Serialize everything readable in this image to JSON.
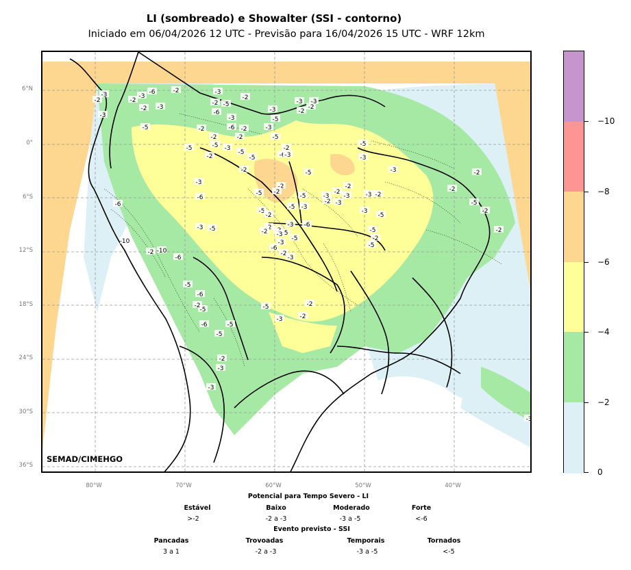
{
  "header": {
    "title": "LI (sombreado) e Showalter (SSI - contorno)",
    "subtitle": "Iniciado em 06/04/2026 12 UTC - Previsão para 16/04/2026 15 UTC - WRF 12km"
  },
  "map": {
    "credit": "SEMAD/CIMEHGO",
    "lat_ticks": [
      "6°N",
      "0°",
      "6°S",
      "12°S",
      "18°S",
      "24°S",
      "30°S",
      "36°S"
    ],
    "lon_ticks": [
      "80°W",
      "70°W",
      "60°W",
      "50°W",
      "40°W"
    ],
    "lon_range": [
      -86,
      -31
    ],
    "lat_range": [
      -37,
      9
    ],
    "contour_labels": [
      "-3",
      "-2",
      "-3",
      "-6",
      "-3",
      "-2",
      "-2",
      "-5",
      "-3",
      "-2",
      "-3",
      "-2",
      "-5",
      "-6",
      "-3",
      "-2",
      "-6",
      "-2",
      "-2",
      "-5",
      "-5",
      "-2",
      "-3",
      "-6",
      "-5",
      "-2",
      "-3",
      "-5",
      "-5",
      "-2",
      "-3",
      "-5",
      "-6",
      "-3",
      "-3",
      "-2",
      "-5",
      "-2",
      "-2",
      "-3",
      "-3",
      "-2",
      "-2",
      "-2",
      "-5",
      "-2",
      "-5",
      "-3",
      "-5",
      "-2",
      "-3",
      "-5",
      "-5",
      "-5",
      "-3",
      "-2",
      "-6",
      "-2",
      "-3",
      "-3",
      "-2",
      "-3",
      "-2",
      "-5",
      "-3",
      "-3",
      "-5",
      "-5",
      "-5",
      "-2",
      "-3",
      "-3",
      "-2",
      "-10",
      "-2",
      "-6",
      "-10",
      "-6",
      "-5",
      "-6",
      "-5",
      "-2",
      "-6",
      "-5",
      "-5",
      "-2",
      "-3",
      "-3",
      "-5",
      "-3",
      "-2",
      "-3",
      "-6",
      "-2",
      "-3",
      "-2",
      "-5",
      "-3",
      "-2",
      "-3",
      "-2",
      "-2",
      "-5",
      "-2",
      "-2"
    ]
  },
  "colorbar": {
    "labels": [
      "−10",
      "−8",
      "−6",
      "−4",
      "−2",
      "0"
    ],
    "colors": [
      "#c795cd",
      "#fe9595",
      "#fdd68f",
      "#feff99",
      "#a6e9a4",
      "#dcf0f6"
    ]
  },
  "legend": {
    "li_title": "Potencial para Tempo Severo - LI",
    "li_categories": [
      {
        "label": "Estável",
        "value": ">-2"
      },
      {
        "label": "Baixo",
        "value": "-2 a -3"
      },
      {
        "label": "Moderado",
        "value": "-3 a -5"
      },
      {
        "label": "Forte",
        "value": "<-6"
      }
    ],
    "ssi_title": "Evento previsto - SSI",
    "ssi_categories": [
      {
        "label": "Pancadas",
        "value": "3 a 1"
      },
      {
        "label": "Trovoadas",
        "value": "-2 a -3"
      },
      {
        "label": "Temporais",
        "value": "-3 a -5"
      },
      {
        "label": "Tornados",
        "value": "<-5"
      }
    ]
  }
}
